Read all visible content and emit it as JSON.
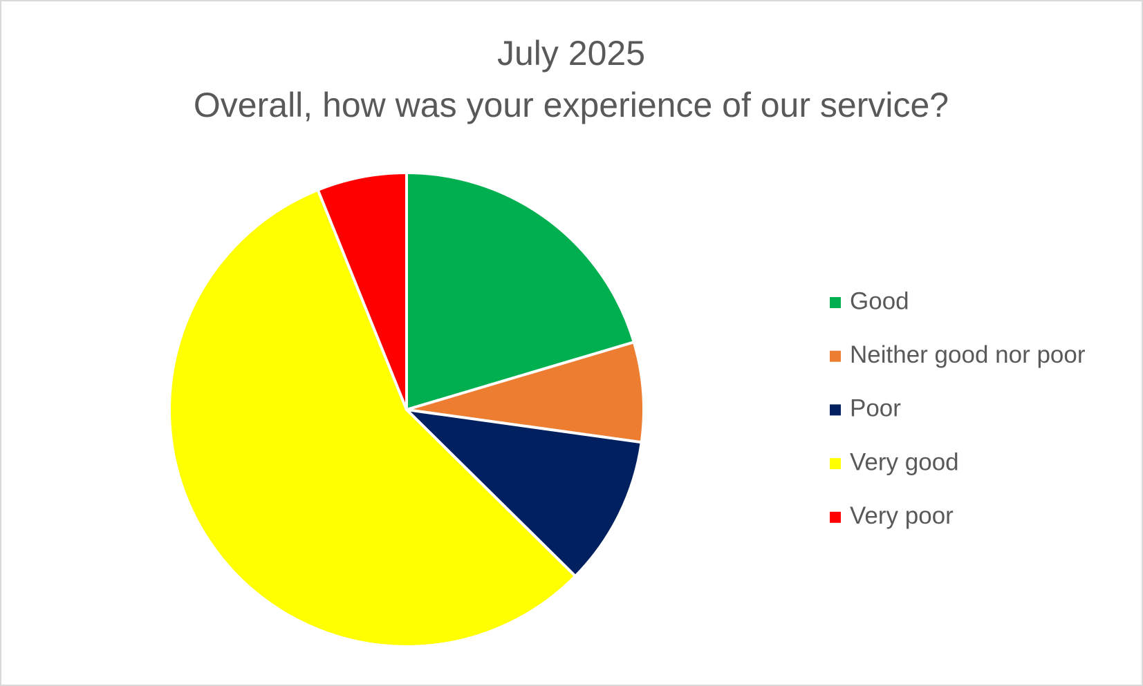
{
  "chart_data": {
    "type": "pie",
    "title": "July 2025",
    "subtitle": "Overall, how was your experience of our service?",
    "categories": [
      "Good",
      "Neither good nor poor",
      "Poor",
      "Very good",
      "Very poor"
    ],
    "values": [
      20.4,
      6.8,
      10.2,
      56.5,
      6.1
    ],
    "colors": [
      "#00b050",
      "#ed7d31",
      "#002060",
      "#ffff00",
      "#ff0000"
    ],
    "legend": "right"
  }
}
